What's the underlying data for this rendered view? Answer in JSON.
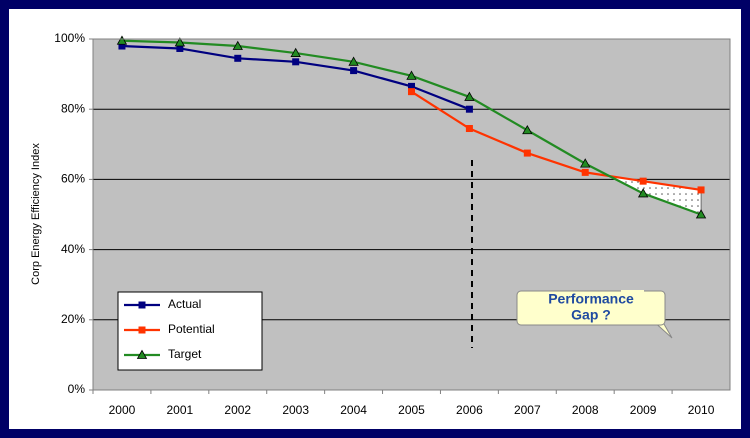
{
  "chart_data": {
    "type": "line",
    "y_label": "Corp Energy Efficiency Index",
    "categories": [
      "2000",
      "2001",
      "2002",
      "2003",
      "2004",
      "2005",
      "2006",
      "2007",
      "2008",
      "2009",
      "2010"
    ],
    "series": [
      {
        "name": "Actual",
        "color": "#000080",
        "marker": "square",
        "values": [
          98,
          97.3,
          94.5,
          93.5,
          91,
          86.5,
          80,
          null,
          null,
          null,
          null
        ]
      },
      {
        "name": "Potential",
        "color": "#ff3300",
        "marker": "square",
        "values": [
          null,
          null,
          null,
          null,
          null,
          85,
          74.5,
          67.5,
          62,
          59.5,
          57
        ]
      },
      {
        "name": "Target",
        "color": "#228b22",
        "marker": "triangle",
        "values": [
          99.5,
          99,
          98,
          96,
          93.5,
          89.5,
          83.5,
          74,
          64.5,
          56,
          50
        ]
      }
    ],
    "ylim": [
      0,
      100
    ],
    "yticks": [
      {
        "value": 0,
        "label": "0%"
      },
      {
        "value": 20,
        "label": "20%"
      },
      {
        "value": 40,
        "label": "40%"
      },
      {
        "value": 60,
        "label": "60%"
      },
      {
        "value": 80,
        "label": "80%"
      },
      {
        "value": 100,
        "label": "100%"
      }
    ],
    "grid": true,
    "annotation": [
      "Performance",
      "Gap ?"
    ]
  }
}
